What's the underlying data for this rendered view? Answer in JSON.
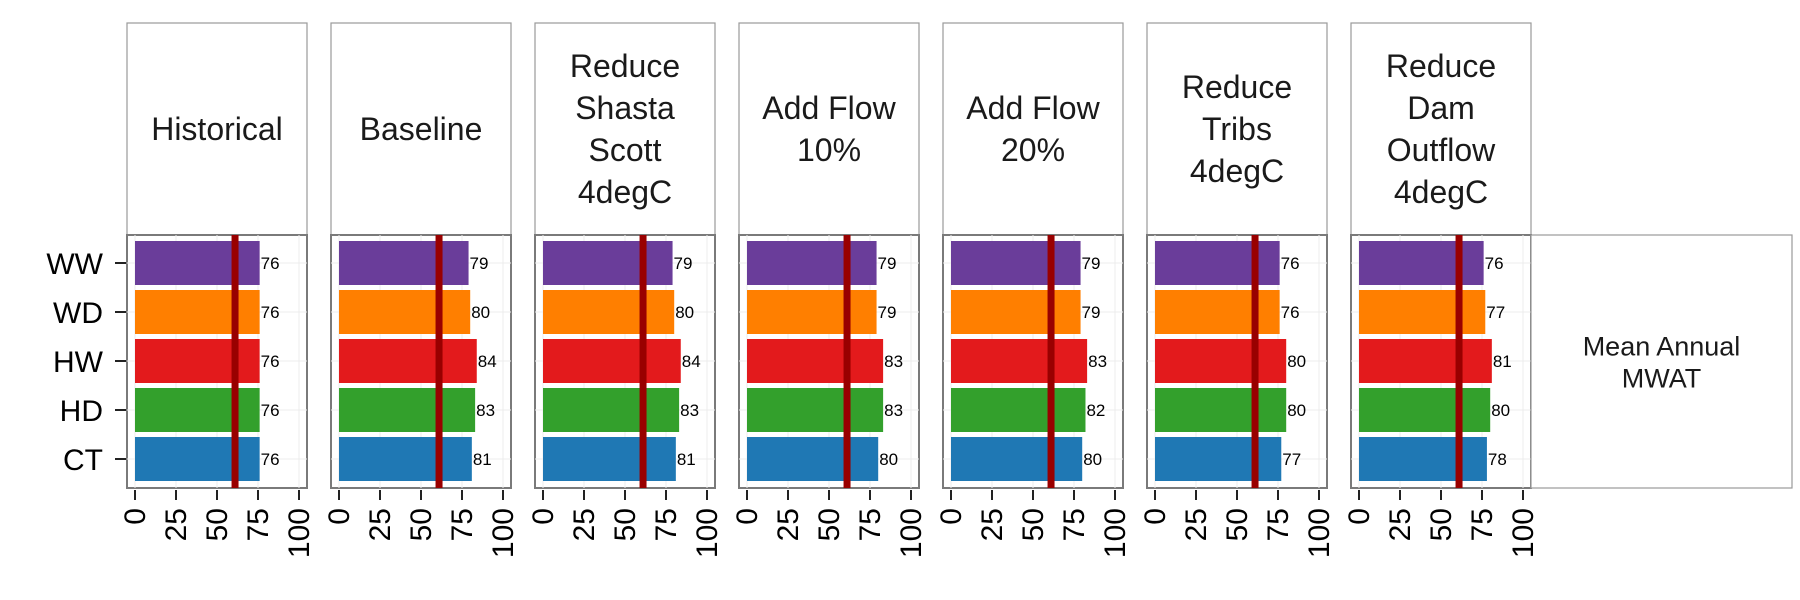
{
  "chart_data": {
    "type": "bar",
    "orientation": "horizontal",
    "categories": [
      "WW",
      "WD",
      "HW",
      "HD",
      "CT"
    ],
    "category_colors": {
      "WW": "#6a3d9a",
      "WD": "#ff7f00",
      "HW": "#e31a1c",
      "HD": "#33a02c",
      "CT": "#1f78b4"
    },
    "reference_line": {
      "value": 61,
      "color": "#990000"
    },
    "xlim": [
      0,
      100
    ],
    "xticks": [
      "0",
      "25",
      "50",
      "75",
      "100"
    ],
    "row_strip_label": [
      "Mean Annual",
      "MWAT"
    ],
    "panels": [
      {
        "label": [
          "Historical"
        ],
        "values": [
          76,
          76,
          76,
          76,
          76
        ]
      },
      {
        "label": [
          "Baseline"
        ],
        "values": [
          79,
          80,
          84,
          83,
          81
        ]
      },
      {
        "label": [
          "Reduce",
          "Shasta",
          "Scott",
          "4degC"
        ],
        "values": [
          79,
          80,
          84,
          83,
          81
        ]
      },
      {
        "label": [
          "Add Flow",
          "10%"
        ],
        "values": [
          79,
          79,
          83,
          83,
          80
        ]
      },
      {
        "label": [
          "Add Flow",
          "20%"
        ],
        "values": [
          79,
          79,
          83,
          82,
          80
        ]
      },
      {
        "label": [
          "Reduce",
          "Tribs",
          "4degC"
        ],
        "values": [
          76,
          76,
          80,
          80,
          77
        ]
      },
      {
        "label": [
          "Reduce",
          "Dam",
          "Outflow",
          "4degC"
        ],
        "values": [
          76,
          77,
          81,
          80,
          78
        ]
      }
    ]
  }
}
